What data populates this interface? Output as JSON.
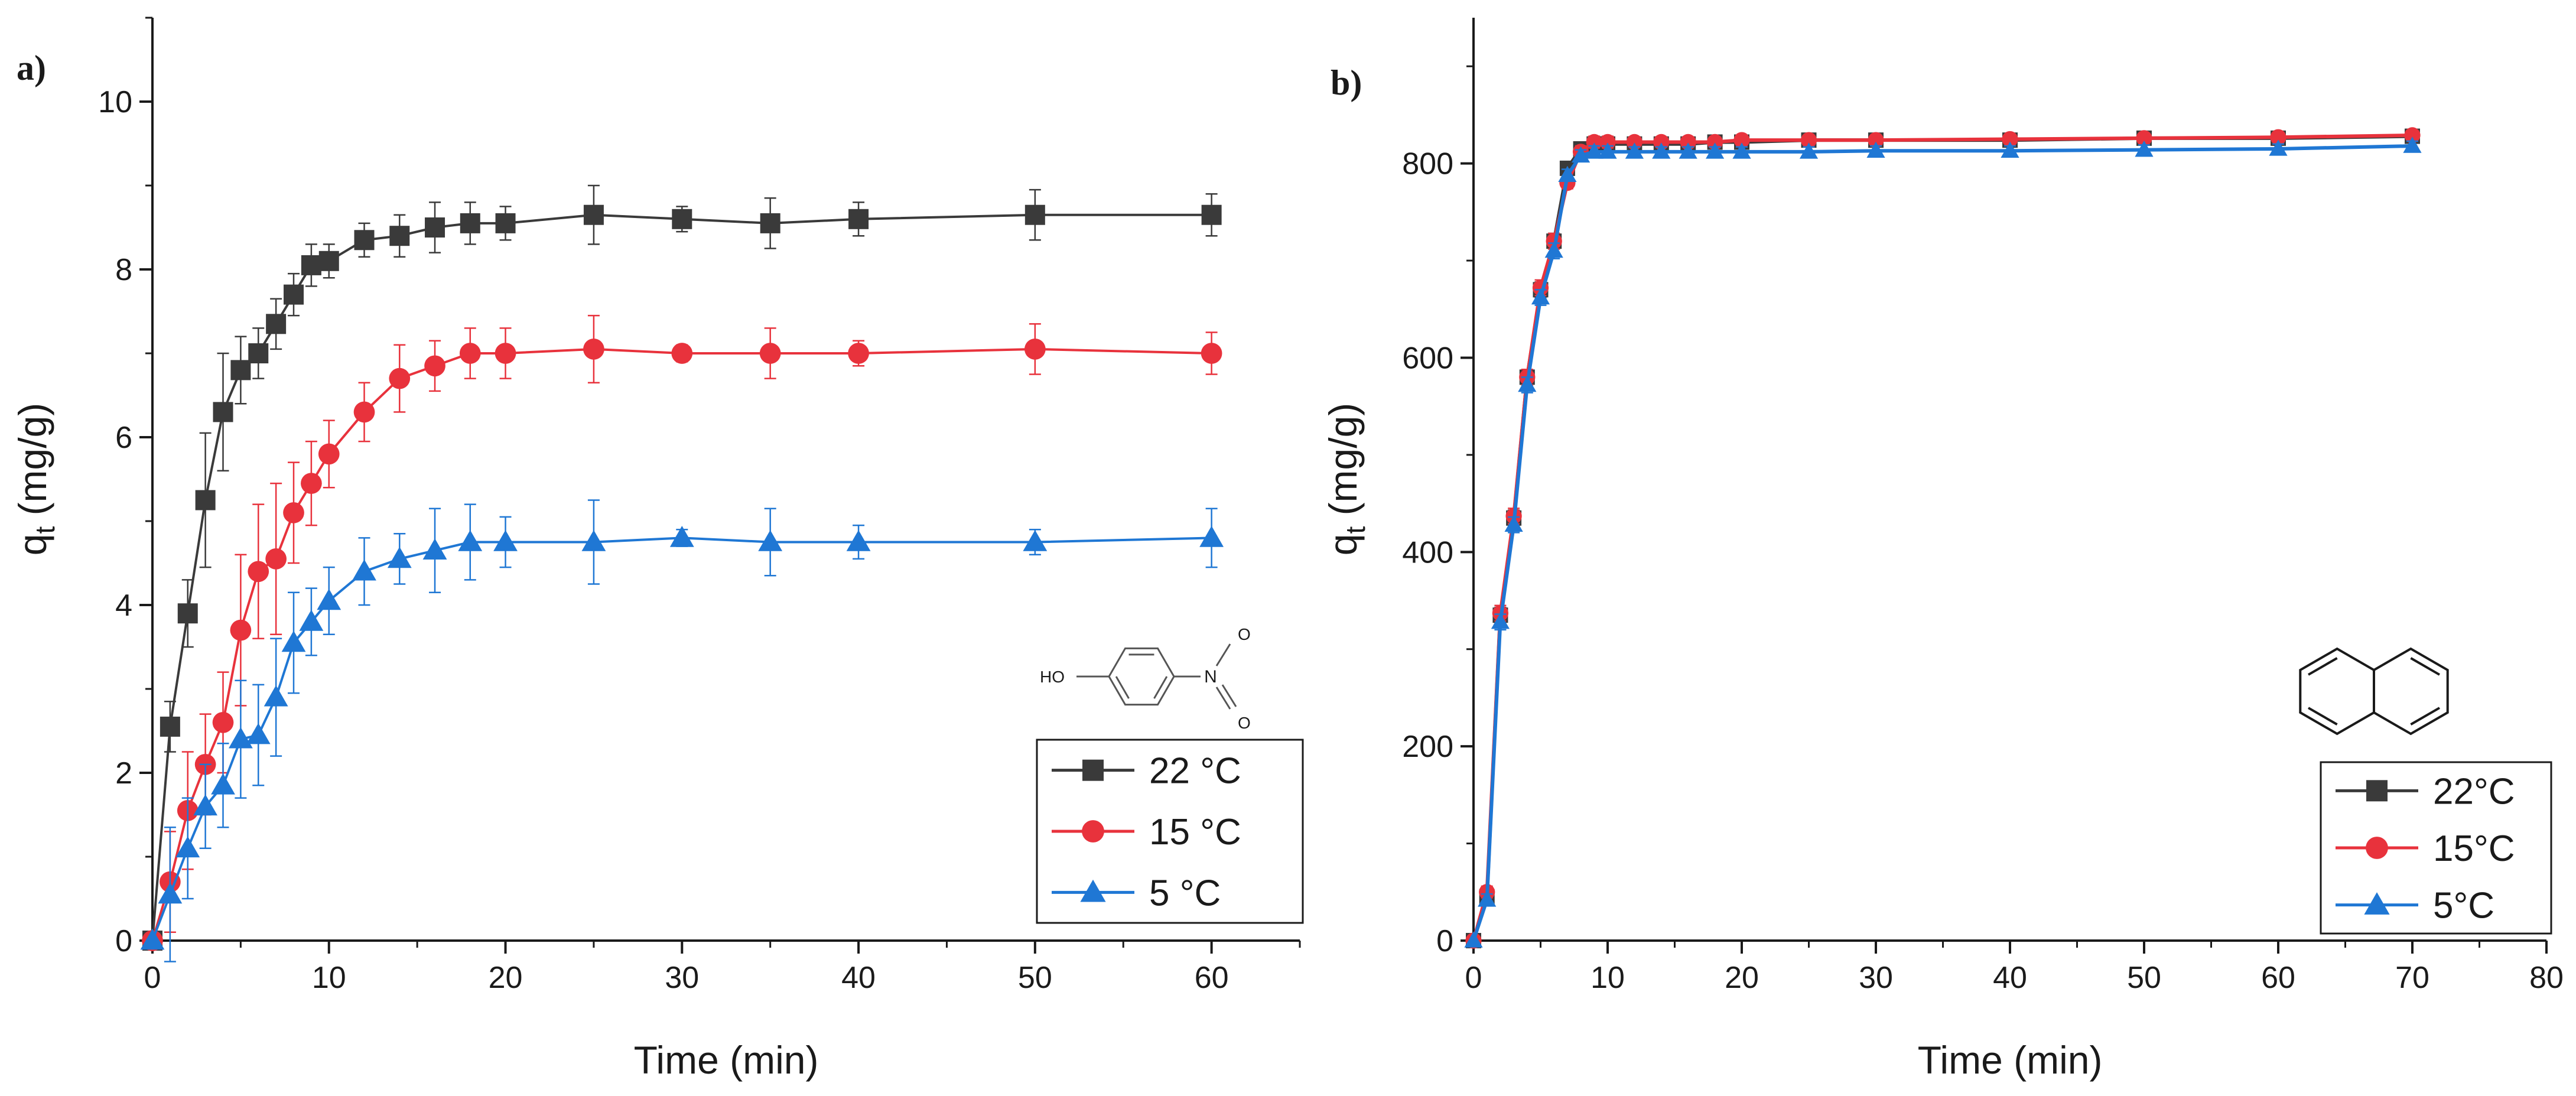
{
  "chart_data": [
    {
      "id": "a",
      "type": "line",
      "panel_label": "a)",
      "xlabel": "Time (min)",
      "ylabel_main": "q",
      "ylabel_sub": "t",
      "ylabel_rest": " (mg/g)",
      "xlim": [
        0,
        65
      ],
      "ylim": [
        0,
        11
      ],
      "xticks": [
        0,
        10,
        20,
        30,
        40,
        50,
        60
      ],
      "yticks": [
        0,
        2,
        4,
        6,
        8,
        10
      ],
      "legend_position": "bottom-right",
      "inset": "4-nitrophenol structure",
      "inset_labels": {
        "oh": "HO",
        "n": "N",
        "o1": "O",
        "o2": "O"
      },
      "series": [
        {
          "name": "22 °C",
          "color": "#3a3a3a",
          "marker": "square",
          "x": [
            0,
            1,
            2,
            3,
            4,
            5,
            6,
            7,
            8,
            9,
            10,
            12,
            14,
            16,
            18,
            20,
            25,
            30,
            35,
            40,
            50,
            60
          ],
          "y": [
            0,
            2.55,
            3.9,
            5.25,
            6.3,
            6.8,
            7.0,
            7.35,
            7.7,
            8.05,
            8.1,
            8.35,
            8.4,
            8.5,
            8.55,
            8.55,
            8.65,
            8.6,
            8.55,
            8.6,
            8.65,
            8.65
          ],
          "err": [
            0,
            0.3,
            0.4,
            0.8,
            0.7,
            0.4,
            0.3,
            0.3,
            0.25,
            0.25,
            0.2,
            0.2,
            0.25,
            0.3,
            0.25,
            0.2,
            0.35,
            0.15,
            0.3,
            0.2,
            0.3,
            0.25
          ]
        },
        {
          "name": "15 °C",
          "color": "#e8323c",
          "marker": "circle",
          "x": [
            0,
            1,
            2,
            3,
            4,
            5,
            6,
            7,
            8,
            9,
            10,
            12,
            14,
            16,
            18,
            20,
            25,
            30,
            35,
            40,
            50,
            60
          ],
          "y": [
            0,
            0.7,
            1.55,
            2.1,
            2.6,
            3.7,
            4.4,
            4.55,
            5.1,
            5.45,
            5.8,
            6.3,
            6.7,
            6.85,
            7.0,
            7.0,
            7.05,
            7.0,
            7.0,
            7.0,
            7.05,
            7.0
          ],
          "err": [
            0,
            0.6,
            0.7,
            0.6,
            0.6,
            0.9,
            0.8,
            0.9,
            0.6,
            0.5,
            0.4,
            0.35,
            0.4,
            0.3,
            0.3,
            0.3,
            0.4,
            0.1,
            0.3,
            0.15,
            0.3,
            0.25
          ]
        },
        {
          "name": "5 °C",
          "color": "#1f77d4",
          "marker": "triangle",
          "x": [
            0,
            1,
            2,
            3,
            4,
            5,
            6,
            7,
            8,
            9,
            10,
            12,
            14,
            16,
            18,
            20,
            25,
            30,
            35,
            40,
            50,
            60
          ],
          "y": [
            0,
            0.55,
            1.1,
            1.6,
            1.85,
            2.4,
            2.45,
            2.9,
            3.55,
            3.8,
            4.05,
            4.4,
            4.55,
            4.65,
            4.75,
            4.75,
            4.75,
            4.8,
            4.75,
            4.75,
            4.75,
            4.8
          ],
          "err": [
            0,
            0.8,
            0.6,
            0.5,
            0.5,
            0.7,
            0.6,
            0.7,
            0.6,
            0.4,
            0.4,
            0.4,
            0.3,
            0.5,
            0.45,
            0.3,
            0.5,
            0.1,
            0.4,
            0.2,
            0.15,
            0.35
          ]
        }
      ]
    },
    {
      "id": "b",
      "type": "line",
      "panel_label": "b)",
      "xlabel": "Time (min)",
      "ylabel_main": "q",
      "ylabel_sub": "t",
      "ylabel_rest": " (mg/g)",
      "xlim": [
        0,
        80
      ],
      "ylim": [
        0,
        950
      ],
      "xticks": [
        0,
        10,
        20,
        30,
        40,
        50,
        60,
        70,
        80
      ],
      "yticks": [
        0,
        200,
        400,
        600,
        800
      ],
      "legend_position": "bottom-right",
      "inset": "naphthalene structure",
      "series": [
        {
          "name": "22°C",
          "color": "#3a3a3a",
          "marker": "square",
          "x": [
            0,
            1,
            2,
            3,
            4,
            5,
            6,
            7,
            8,
            9,
            10,
            12,
            14,
            16,
            18,
            20,
            25,
            30,
            40,
            50,
            60,
            70
          ],
          "y": [
            0,
            45,
            335,
            435,
            580,
            670,
            720,
            795,
            815,
            820,
            820,
            820,
            820,
            820,
            822,
            822,
            824,
            824,
            824,
            826,
            826,
            828
          ],
          "err": [
            0,
            6,
            8,
            8,
            8,
            8,
            8,
            6,
            6,
            6,
            6,
            5,
            5,
            5,
            5,
            5,
            5,
            5,
            5,
            5,
            5,
            5
          ]
        },
        {
          "name": "15°C",
          "color": "#e8323c",
          "marker": "circle",
          "x": [
            0,
            1,
            2,
            3,
            4,
            5,
            6,
            7,
            8,
            9,
            10,
            12,
            14,
            16,
            18,
            20,
            25,
            30,
            40,
            50,
            60,
            70
          ],
          "y": [
            0,
            50,
            337,
            437,
            580,
            672,
            720,
            780,
            812,
            822,
            822,
            822,
            822,
            822,
            822,
            824,
            824,
            824,
            825,
            826,
            827,
            829
          ],
          "err": [
            0,
            6,
            8,
            8,
            8,
            8,
            8,
            6,
            6,
            6,
            6,
            5,
            5,
            5,
            5,
            5,
            5,
            5,
            5,
            5,
            5,
            5
          ]
        },
        {
          "name": "5°C",
          "color": "#1f77d4",
          "marker": "triangle",
          "x": [
            0,
            1,
            2,
            3,
            4,
            5,
            6,
            7,
            8,
            9,
            10,
            12,
            14,
            16,
            18,
            20,
            25,
            30,
            40,
            50,
            60,
            70
          ],
          "y": [
            0,
            42,
            328,
            428,
            572,
            662,
            710,
            788,
            808,
            812,
            812,
            812,
            812,
            812,
            812,
            812,
            812,
            813,
            813,
            814,
            815,
            818
          ],
          "err": [
            0,
            6,
            8,
            8,
            8,
            8,
            8,
            6,
            6,
            6,
            6,
            5,
            5,
            5,
            5,
            5,
            5,
            5,
            5,
            5,
            5,
            5
          ]
        }
      ]
    }
  ]
}
